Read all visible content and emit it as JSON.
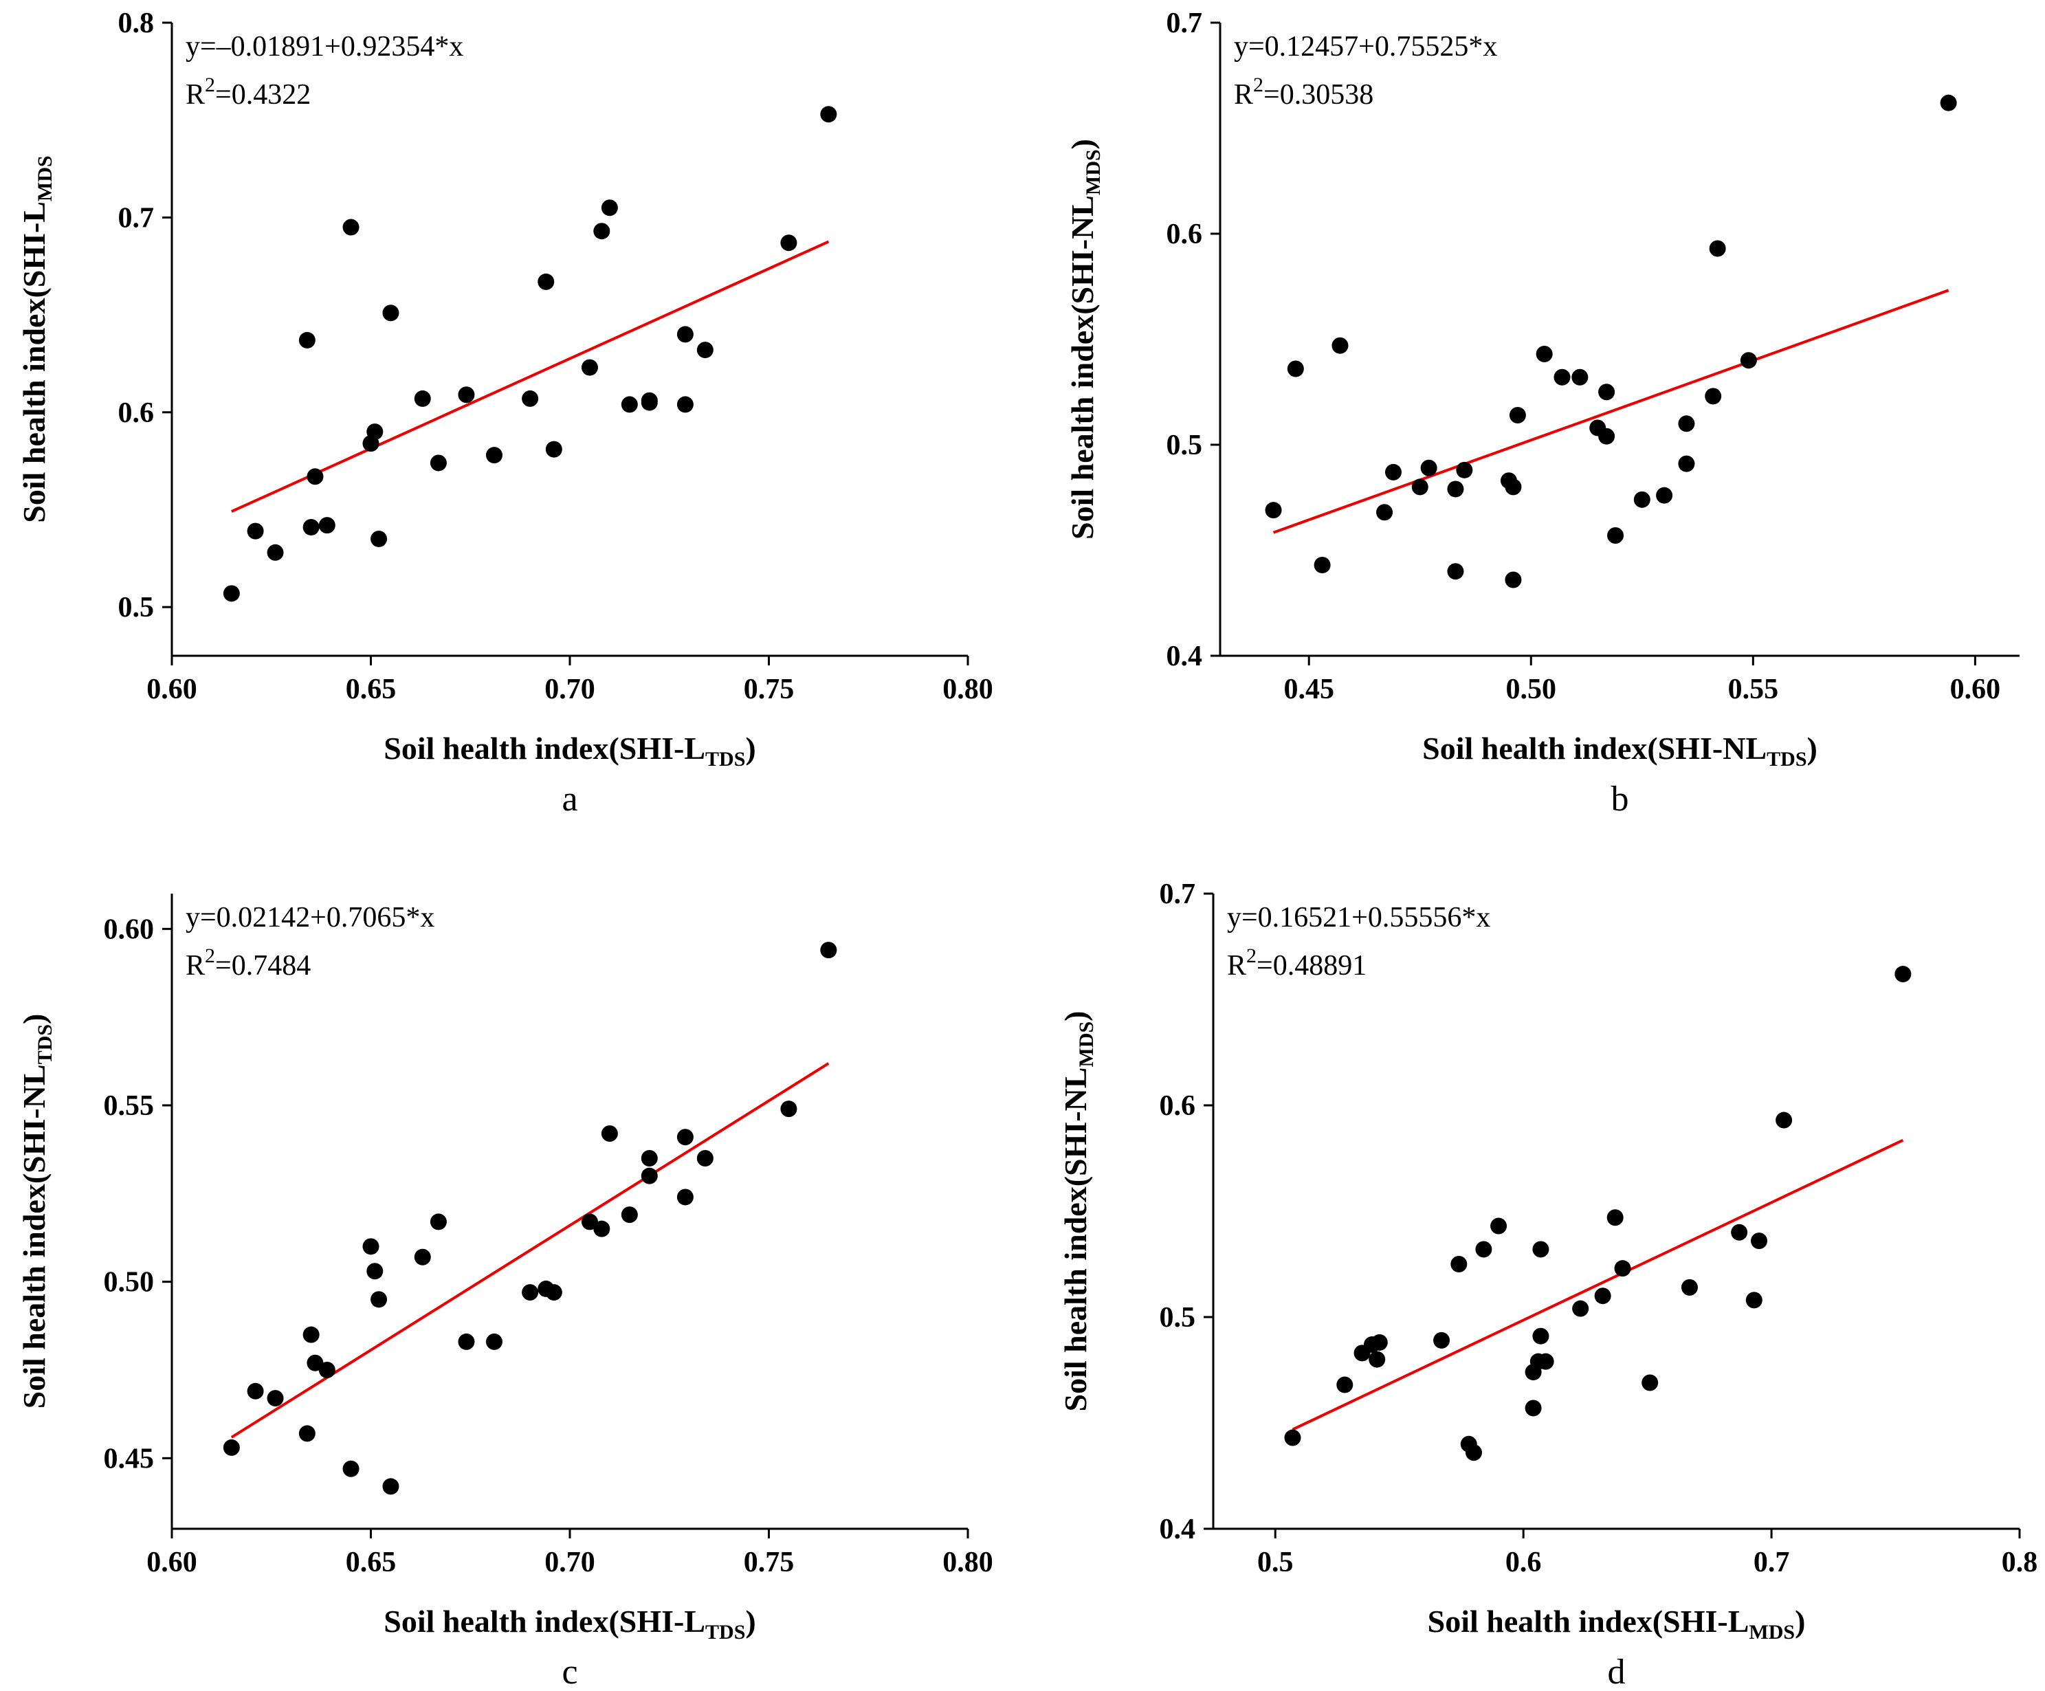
{
  "chart_data": [
    {
      "type": "scatter",
      "panel_label": "a",
      "xlabel_prefix": "Soil health index(SHI-L",
      "xlabel_sub": "TDS",
      "xlabel_suffix": ")",
      "ylabel_prefix": "Soil health index(SHI-L",
      "ylabel_sub": "MDS",
      "ylabel_suffix": "",
      "xlim": [
        0.6,
        0.8
      ],
      "ylim": [
        0.475,
        0.8
      ],
      "xticks": [
        0.6,
        0.65,
        0.7,
        0.75,
        0.8
      ],
      "xtick_labels": [
        "0.60",
        "0.65",
        "0.70",
        "0.75",
        "0.80"
      ],
      "yticks": [
        0.5,
        0.6,
        0.7,
        0.8
      ],
      "ytick_labels": [
        "0.5",
        "0.6",
        "0.7",
        "0.8"
      ],
      "equation": "y=–0.01891+0.92354*x",
      "r2_prefix": "R",
      "r2_sup": "2",
      "r2_value": "=0.4322",
      "fit": {
        "intercept": -0.01891,
        "slope": 0.92354,
        "x_range": [
          0.615,
          0.765
        ]
      },
      "points": [
        [
          0.615,
          0.507
        ],
        [
          0.621,
          0.539
        ],
        [
          0.626,
          0.528
        ],
        [
          0.634,
          0.637
        ],
        [
          0.635,
          0.541
        ],
        [
          0.636,
          0.567
        ],
        [
          0.639,
          0.542
        ],
        [
          0.645,
          0.695
        ],
        [
          0.65,
          0.584
        ],
        [
          0.651,
          0.59
        ],
        [
          0.652,
          0.535
        ],
        [
          0.655,
          0.651
        ],
        [
          0.663,
          0.607
        ],
        [
          0.667,
          0.574
        ],
        [
          0.674,
          0.609
        ],
        [
          0.681,
          0.578
        ],
        [
          0.69,
          0.607
        ],
        [
          0.694,
          0.667
        ],
        [
          0.696,
          0.581
        ],
        [
          0.705,
          0.623
        ],
        [
          0.708,
          0.693
        ],
        [
          0.71,
          0.705
        ],
        [
          0.715,
          0.604
        ],
        [
          0.72,
          0.605
        ],
        [
          0.72,
          0.606
        ],
        [
          0.729,
          0.64
        ],
        [
          0.729,
          0.604
        ],
        [
          0.734,
          0.632
        ],
        [
          0.755,
          0.687
        ],
        [
          0.765,
          0.753
        ]
      ]
    },
    {
      "type": "scatter",
      "panel_label": "b",
      "xlabel_prefix": "Soil health index(SHI-NL",
      "xlabel_sub": "TDS",
      "xlabel_suffix": ")",
      "ylabel_prefix": "Soil health index(SHI-NL",
      "ylabel_sub": "MDS",
      "ylabel_suffix": ")",
      "xlim": [
        0.43,
        0.61
      ],
      "ylim": [
        0.4,
        0.7
      ],
      "xticks": [
        0.45,
        0.5,
        0.55,
        0.6
      ],
      "xtick_labels": [
        "0.45",
        "0.50",
        "0.55",
        "0.60"
      ],
      "yticks": [
        0.4,
        0.5,
        0.6,
        0.7
      ],
      "ytick_labels": [
        "0.4",
        "0.5",
        "0.6",
        "0.7"
      ],
      "equation": "y=0.12457+0.75525*x",
      "r2_prefix": "R",
      "r2_sup": "2",
      "r2_value": "=0.30538",
      "fit": {
        "intercept": 0.12457,
        "slope": 0.75525,
        "x_range": [
          0.442,
          0.594
        ]
      },
      "points": [
        [
          0.442,
          0.469
        ],
        [
          0.447,
          0.536
        ],
        [
          0.453,
          0.443
        ],
        [
          0.457,
          0.547
        ],
        [
          0.467,
          0.468
        ],
        [
          0.469,
          0.487
        ],
        [
          0.475,
          0.48
        ],
        [
          0.477,
          0.489
        ],
        [
          0.483,
          0.479
        ],
        [
          0.483,
          0.44
        ],
        [
          0.485,
          0.488
        ],
        [
          0.495,
          0.483
        ],
        [
          0.496,
          0.48
        ],
        [
          0.496,
          0.436
        ],
        [
          0.497,
          0.514
        ],
        [
          0.503,
          0.543
        ],
        [
          0.507,
          0.532
        ],
        [
          0.511,
          0.532
        ],
        [
          0.515,
          0.508
        ],
        [
          0.517,
          0.525
        ],
        [
          0.517,
          0.504
        ],
        [
          0.519,
          0.457
        ],
        [
          0.525,
          0.474
        ],
        [
          0.53,
          0.476
        ],
        [
          0.535,
          0.491
        ],
        [
          0.535,
          0.51
        ],
        [
          0.541,
          0.523
        ],
        [
          0.542,
          0.593
        ],
        [
          0.549,
          0.54
        ],
        [
          0.594,
          0.662
        ]
      ]
    },
    {
      "type": "scatter",
      "panel_label": "c",
      "xlabel_prefix": "Soil health index(SHI-L",
      "xlabel_sub": "TDS",
      "xlabel_suffix": ")",
      "ylabel_prefix": "Soil health index(SHI-NL",
      "ylabel_sub": "TDS",
      "ylabel_suffix": ")",
      "xlim": [
        0.6,
        0.8
      ],
      "ylim": [
        0.43,
        0.61
      ],
      "xticks": [
        0.6,
        0.65,
        0.7,
        0.75,
        0.8
      ],
      "xtick_labels": [
        "0.60",
        "0.65",
        "0.70",
        "0.75",
        "0.80"
      ],
      "yticks": [
        0.45,
        0.5,
        0.55,
        0.6
      ],
      "ytick_labels": [
        "0.45",
        "0.50",
        "0.55",
        "0.60"
      ],
      "equation": "y=0.02142+0.7065*x",
      "r2_prefix": "R",
      "r2_sup": "2",
      "r2_value": "=0.7484",
      "fit": {
        "intercept": 0.02142,
        "slope": 0.7065,
        "x_range": [
          0.615,
          0.765
        ]
      },
      "points": [
        [
          0.615,
          0.453
        ],
        [
          0.621,
          0.469
        ],
        [
          0.626,
          0.467
        ],
        [
          0.634,
          0.457
        ],
        [
          0.635,
          0.485
        ],
        [
          0.636,
          0.477
        ],
        [
          0.639,
          0.475
        ],
        [
          0.645,
          0.447
        ],
        [
          0.65,
          0.51
        ],
        [
          0.651,
          0.503
        ],
        [
          0.652,
          0.495
        ],
        [
          0.655,
          0.442
        ],
        [
          0.663,
          0.507
        ],
        [
          0.667,
          0.517
        ],
        [
          0.674,
          0.483
        ],
        [
          0.681,
          0.483
        ],
        [
          0.69,
          0.497
        ],
        [
          0.694,
          0.498
        ],
        [
          0.696,
          0.497
        ],
        [
          0.705,
          0.517
        ],
        [
          0.708,
          0.515
        ],
        [
          0.71,
          0.542
        ],
        [
          0.715,
          0.519
        ],
        [
          0.72,
          0.535
        ],
        [
          0.72,
          0.53
        ],
        [
          0.729,
          0.541
        ],
        [
          0.729,
          0.524
        ],
        [
          0.734,
          0.535
        ],
        [
          0.755,
          0.549
        ],
        [
          0.765,
          0.594
        ]
      ]
    },
    {
      "type": "scatter",
      "panel_label": "d",
      "xlabel_prefix": "Soil health index(SHI-L",
      "xlabel_sub": "MDS",
      "xlabel_suffix": ")",
      "ylabel_prefix": "Soil health index(SHI-NL",
      "ylabel_sub": "MDS",
      "ylabel_suffix": ")",
      "xlim": [
        0.475,
        0.8
      ],
      "ylim": [
        0.4,
        0.7
      ],
      "xticks": [
        0.5,
        0.6,
        0.7,
        0.8
      ],
      "xtick_labels": [
        "0.5",
        "0.6",
        "0.7",
        "0.8"
      ],
      "yticks": [
        0.4,
        0.5,
        0.6,
        0.7
      ],
      "ytick_labels": [
        "0.4",
        "0.5",
        "0.6",
        "0.7"
      ],
      "equation": "y=0.16521+0.55556*x",
      "r2_prefix": "R",
      "r2_sup": "2",
      "r2_value": "=0.48891",
      "fit": {
        "intercept": 0.16521,
        "slope": 0.55556,
        "x_range": [
          0.507,
          0.753
        ]
      },
      "points": [
        [
          0.507,
          0.443
        ],
        [
          0.528,
          0.468
        ],
        [
          0.535,
          0.483
        ],
        [
          0.539,
          0.487
        ],
        [
          0.541,
          0.48
        ],
        [
          0.542,
          0.488
        ],
        [
          0.567,
          0.489
        ],
        [
          0.574,
          0.525
        ],
        [
          0.578,
          0.44
        ],
        [
          0.58,
          0.436
        ],
        [
          0.584,
          0.532
        ],
        [
          0.59,
          0.543
        ],
        [
          0.604,
          0.457
        ],
        [
          0.604,
          0.474
        ],
        [
          0.606,
          0.479
        ],
        [
          0.607,
          0.491
        ],
        [
          0.607,
          0.532
        ],
        [
          0.609,
          0.479
        ],
        [
          0.623,
          0.504
        ],
        [
          0.632,
          0.51
        ],
        [
          0.637,
          0.547
        ],
        [
          0.64,
          0.523
        ],
        [
          0.651,
          0.469
        ],
        [
          0.667,
          0.514
        ],
        [
          0.687,
          0.54
        ],
        [
          0.693,
          0.508
        ],
        [
          0.695,
          0.536
        ],
        [
          0.705,
          0.593
        ],
        [
          0.753,
          0.662
        ]
      ]
    }
  ]
}
